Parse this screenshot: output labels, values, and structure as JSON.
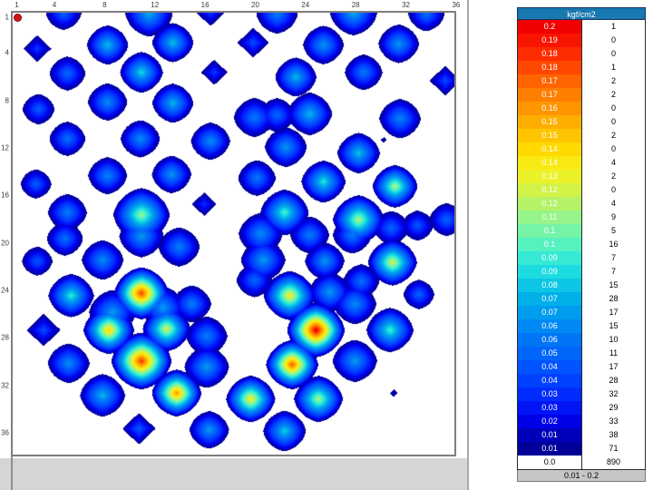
{
  "plot": {
    "border_color": "#7e7e7e",
    "marker_color": "#d41313"
  },
  "legend": {
    "title": "kgf/cm2",
    "header_bg": "#1878b0",
    "footer": "0.01 - 0.2",
    "zero": {
      "value": "0.0",
      "count": "890"
    },
    "rows": [
      {
        "value": "0.2",
        "count": "1",
        "color": "#F00000"
      },
      {
        "value": "0.19",
        "count": "0",
        "color": "#F91400"
      },
      {
        "value": "0.18",
        "count": "0",
        "color": "#FF2C00"
      },
      {
        "value": "0.18",
        "count": "1",
        "color": "#FF4800"
      },
      {
        "value": "0.17",
        "count": "2",
        "color": "#FF6400"
      },
      {
        "value": "0.17",
        "count": "2",
        "color": "#FF7F00"
      },
      {
        "value": "0.16",
        "count": "0",
        "color": "#FF9600"
      },
      {
        "value": "0.15",
        "count": "0",
        "color": "#FFAE00"
      },
      {
        "value": "0.15",
        "count": "2",
        "color": "#FFC400"
      },
      {
        "value": "0.14",
        "count": "0",
        "color": "#FFD900"
      },
      {
        "value": "0.14",
        "count": "4",
        "color": "#F9E913"
      },
      {
        "value": "0.13",
        "count": "2",
        "color": "#EBF22A"
      },
      {
        "value": "0.12",
        "count": "0",
        "color": "#D2F247"
      },
      {
        "value": "0.12",
        "count": "4",
        "color": "#B5F267"
      },
      {
        "value": "0.11",
        "count": "9",
        "color": "#95F48A"
      },
      {
        "value": "0.1",
        "count": "5",
        "color": "#75F4A7"
      },
      {
        "value": "0.1",
        "count": "16",
        "color": "#55F2C0"
      },
      {
        "value": "0.09",
        "count": "7",
        "color": "#35E9D4"
      },
      {
        "value": "0.09",
        "count": "7",
        "color": "#1CDBE1"
      },
      {
        "value": "0.08",
        "count": "15",
        "color": "#0DC6E5"
      },
      {
        "value": "0.07",
        "count": "28",
        "color": "#00B0E9"
      },
      {
        "value": "0.07",
        "count": "17",
        "color": "#009CEE"
      },
      {
        "value": "0.06",
        "count": "15",
        "color": "#0088F3"
      },
      {
        "value": "0.06",
        "count": "10",
        "color": "#0076F7"
      },
      {
        "value": "0.05",
        "count": "11",
        "color": "#0065FB"
      },
      {
        "value": "0.04",
        "count": "17",
        "color": "#0054FF"
      },
      {
        "value": "0.04",
        "count": "28",
        "color": "#0041FF"
      },
      {
        "value": "0.03",
        "count": "32",
        "color": "#002DFE"
      },
      {
        "value": "0.03",
        "count": "29",
        "color": "#0014F6"
      },
      {
        "value": "0.02",
        "count": "33",
        "color": "#0000E7"
      },
      {
        "value": "0.01",
        "count": "38",
        "color": "#0000BB"
      },
      {
        "value": "0.01",
        "count": "71",
        "color": "#000099"
      }
    ]
  },
  "chart_data": {
    "type": "heatmap",
    "units": "kgf/cm2",
    "grid_cols": 36,
    "grid_rows": 36,
    "value_range": [
      0.0,
      0.2
    ],
    "displayed_range": "0.01 - 0.2",
    "x_tick_values": [
      1,
      4,
      8,
      12,
      16,
      20,
      24,
      28,
      32,
      36
    ],
    "y_tick_values": [
      1,
      4,
      8,
      12,
      16,
      20,
      24,
      28,
      32,
      36
    ],
    "zero_count": 890,
    "histogram": [
      [
        0.2,
        1
      ],
      [
        0.19,
        0
      ],
      [
        0.18,
        0
      ],
      [
        0.18,
        1
      ],
      [
        0.17,
        2
      ],
      [
        0.17,
        2
      ],
      [
        0.16,
        0
      ],
      [
        0.15,
        0
      ],
      [
        0.15,
        2
      ],
      [
        0.14,
        0
      ],
      [
        0.14,
        4
      ],
      [
        0.13,
        2
      ],
      [
        0.12,
        0
      ],
      [
        0.12,
        4
      ],
      [
        0.11,
        9
      ],
      [
        0.1,
        5
      ],
      [
        0.1,
        16
      ],
      [
        0.09,
        7
      ],
      [
        0.09,
        7
      ],
      [
        0.08,
        15
      ],
      [
        0.07,
        28
      ],
      [
        0.07,
        17
      ],
      [
        0.06,
        15
      ],
      [
        0.06,
        10
      ],
      [
        0.05,
        11
      ],
      [
        0.04,
        17
      ],
      [
        0.04,
        28
      ],
      [
        0.03,
        32
      ],
      [
        0.03,
        29
      ],
      [
        0.02,
        33
      ],
      [
        0.01,
        38
      ],
      [
        0.01,
        71
      ],
      [
        0.0,
        890
      ]
    ],
    "colormap": [
      [
        0.0,
        "#000080"
      ],
      [
        0.05,
        "#0000A8"
      ],
      [
        0.1,
        "#0000F0"
      ],
      [
        0.16,
        "#0030FF"
      ],
      [
        0.22,
        "#0055FF"
      ],
      [
        0.3,
        "#0080F5"
      ],
      [
        0.38,
        "#00B4E8"
      ],
      [
        0.45,
        "#22E4E0"
      ],
      [
        0.5,
        "#55F2C0"
      ],
      [
        0.55,
        "#88F598"
      ],
      [
        0.6,
        "#BBF260"
      ],
      [
        0.65,
        "#E8F22E"
      ],
      [
        0.7,
        "#FFE60A"
      ],
      [
        0.75,
        "#FFC400"
      ],
      [
        0.8,
        "#FFA000"
      ],
      [
        0.85,
        "#FF7A00"
      ],
      [
        0.9,
        "#FF4E00"
      ],
      [
        0.95,
        "#FF2000"
      ],
      [
        1.0,
        "#F00000"
      ]
    ],
    "points": [
      [
        4.7,
        0.6,
        0.05,
        1.5
      ],
      [
        11.5,
        0.7,
        0.075,
        1.9
      ],
      [
        16.4,
        0.4,
        0.04,
        1.2
      ],
      [
        21.7,
        0.7,
        0.06,
        1.7
      ],
      [
        27.8,
        0.6,
        0.075,
        1.9
      ],
      [
        33.6,
        0.7,
        0.055,
        1.5
      ],
      [
        2.6,
        3.6,
        0.035,
        1.05
      ],
      [
        8.2,
        3.3,
        0.08,
        1.65
      ],
      [
        13.4,
        3.1,
        0.08,
        1.65
      ],
      [
        19.8,
        3.1,
        0.042,
        1.15
      ],
      [
        25.4,
        3.3,
        0.068,
        1.65
      ],
      [
        31.4,
        3.2,
        0.068,
        1.65
      ],
      [
        5.0,
        5.7,
        0.052,
        1.5
      ],
      [
        10.9,
        5.6,
        0.088,
        1.7
      ],
      [
        16.7,
        5.6,
        0.035,
        1.0
      ],
      [
        23.2,
        6.0,
        0.078,
        1.65
      ],
      [
        28.6,
        5.6,
        0.058,
        1.55
      ],
      [
        35.1,
        6.3,
        0.04,
        1.15
      ],
      [
        2.7,
        8.7,
        0.048,
        1.35
      ],
      [
        8.2,
        8.1,
        0.065,
        1.6
      ],
      [
        13.4,
        8.2,
        0.078,
        1.65
      ],
      [
        19.9,
        9.4,
        0.058,
        1.7
      ],
      [
        21.7,
        9.2,
        0.052,
        1.5
      ],
      [
        24.3,
        9.1,
        0.078,
        1.8
      ],
      [
        31.5,
        9.5,
        0.062,
        1.7
      ],
      [
        5.0,
        11.2,
        0.055,
        1.5
      ],
      [
        10.8,
        11.2,
        0.065,
        1.6
      ],
      [
        16.4,
        11.4,
        0.065,
        1.6
      ],
      [
        22.4,
        11.9,
        0.068,
        1.7
      ],
      [
        28.2,
        12.4,
        0.082,
        1.7
      ],
      [
        30.2,
        11.3,
        0.012,
        0.4
      ],
      [
        2.5,
        15.0,
        0.048,
        1.3
      ],
      [
        8.2,
        14.3,
        0.062,
        1.6
      ],
      [
        13.3,
        14.2,
        0.068,
        1.6
      ],
      [
        20.1,
        14.5,
        0.058,
        1.55
      ],
      [
        25.4,
        14.8,
        0.092,
        1.75
      ],
      [
        31.1,
        15.2,
        0.12,
        1.75
      ],
      [
        5.0,
        17.4,
        0.06,
        1.6
      ],
      [
        10.9,
        17.6,
        0.115,
        2.2
      ],
      [
        15.9,
        16.7,
        0.032,
        0.95
      ],
      [
        22.3,
        17.4,
        0.1,
        1.9
      ],
      [
        28.2,
        18.0,
        0.12,
        2.0
      ],
      [
        35.2,
        18.0,
        0.05,
        1.45
      ],
      [
        4.8,
        19.6,
        0.055,
        1.5
      ],
      [
        10.9,
        19.4,
        0.07,
        1.8
      ],
      [
        13.9,
        20.3,
        0.06,
        1.7
      ],
      [
        20.4,
        19.2,
        0.065,
        1.8
      ],
      [
        24.3,
        19.3,
        0.06,
        1.6
      ],
      [
        27.7,
        19.3,
        0.06,
        1.6
      ],
      [
        30.8,
        18.7,
        0.05,
        1.5
      ],
      [
        32.9,
        18.5,
        0.045,
        1.35
      ],
      [
        2.6,
        21.5,
        0.045,
        1.3
      ],
      [
        7.8,
        21.4,
        0.065,
        1.7
      ],
      [
        5.3,
        24.4,
        0.095,
        1.8
      ],
      [
        3.1,
        27.3,
        0.04,
        1.25
      ],
      [
        10.9,
        24.2,
        0.185,
        2.1
      ],
      [
        8.6,
        25.8,
        0.07,
        1.9
      ],
      [
        12.6,
        25.4,
        0.07,
        1.8
      ],
      [
        8.3,
        27.3,
        0.148,
        1.95
      ],
      [
        12.9,
        27.2,
        0.128,
        1.85
      ],
      [
        14.9,
        25.1,
        0.06,
        1.6
      ],
      [
        16.1,
        27.8,
        0.06,
        1.7
      ],
      [
        10.9,
        29.9,
        0.188,
        2.3
      ],
      [
        13.7,
        32.6,
        0.165,
        1.9
      ],
      [
        16.1,
        30.4,
        0.07,
        1.8
      ],
      [
        5.1,
        30.1,
        0.065,
        1.7
      ],
      [
        7.8,
        32.8,
        0.078,
        1.8
      ],
      [
        10.7,
        35.6,
        0.045,
        1.2
      ],
      [
        16.3,
        35.7,
        0.07,
        1.6
      ],
      [
        20.6,
        21.4,
        0.07,
        1.8
      ],
      [
        19.9,
        23.1,
        0.052,
        1.5
      ],
      [
        22.7,
        24.4,
        0.138,
        2.0
      ],
      [
        25.5,
        21.5,
        0.068,
        1.6
      ],
      [
        28.4,
        23.2,
        0.055,
        1.5
      ],
      [
        25.9,
        24.1,
        0.07,
        1.7
      ],
      [
        27.9,
        25.1,
        0.065,
        1.75
      ],
      [
        30.9,
        21.6,
        0.128,
        1.9
      ],
      [
        33.0,
        24.3,
        0.05,
        1.3
      ],
      [
        24.8,
        27.3,
        0.205,
        2.2
      ],
      [
        30.7,
        27.3,
        0.098,
        1.85
      ],
      [
        27.9,
        29.9,
        0.07,
        1.8
      ],
      [
        22.9,
        30.2,
        0.178,
        2.0
      ],
      [
        19.6,
        33.1,
        0.138,
        1.9
      ],
      [
        25.0,
        33.1,
        0.118,
        1.9
      ],
      [
        31.0,
        32.6,
        0.013,
        0.45
      ],
      [
        22.3,
        35.8,
        0.085,
        1.7
      ]
    ]
  }
}
